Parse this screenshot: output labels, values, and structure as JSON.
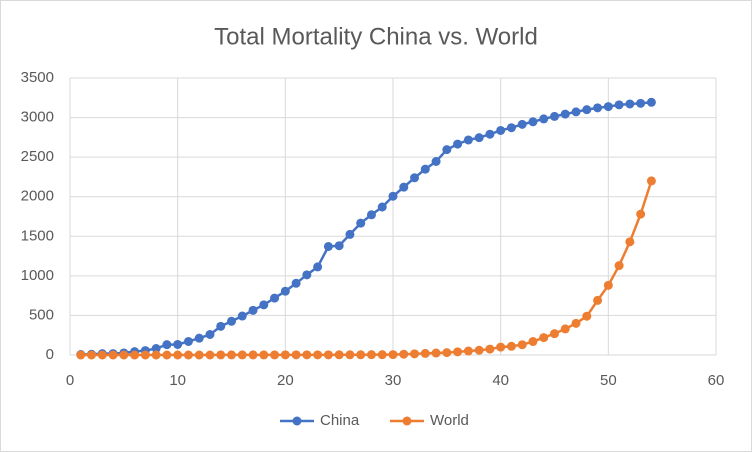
{
  "chart_data": {
    "type": "line",
    "title": "Total Mortality China vs. World",
    "x": [
      1,
      2,
      3,
      4,
      5,
      6,
      7,
      8,
      9,
      10,
      11,
      12,
      13,
      14,
      15,
      16,
      17,
      18,
      19,
      20,
      21,
      22,
      23,
      24,
      25,
      26,
      27,
      28,
      29,
      30,
      31,
      32,
      33,
      34,
      35,
      36,
      37,
      38,
      39,
      40,
      41,
      42,
      43,
      44,
      45,
      46,
      47,
      48,
      49,
      50,
      51,
      52,
      53,
      54
    ],
    "series": [
      {
        "name": "China",
        "color": "#4472c4",
        "values": [
          6,
          9,
          17,
          18,
          26,
          42,
          56,
          82,
          131,
          133,
          171,
          213,
          259,
          362,
          426,
          492,
          564,
          634,
          719,
          806,
          906,
          1013,
          1113,
          1371,
          1381,
          1524,
          1666,
          1772,
          1870,
          2006,
          2121,
          2239,
          2348,
          2445,
          2595,
          2665,
          2717,
          2746,
          2790,
          2837,
          2872,
          2914,
          2947,
          2983,
          3015,
          3044,
          3072,
          3100,
          3123,
          3139,
          3161,
          3172,
          3180,
          3193
        ]
      },
      {
        "name": "World",
        "color": "#ed7d31",
        "values": [
          0,
          0,
          0,
          0,
          0,
          0,
          0,
          0,
          0,
          0,
          0,
          0,
          0,
          1,
          1,
          1,
          1,
          1,
          1,
          2,
          2,
          2,
          2,
          2,
          3,
          3,
          3,
          4,
          4,
          5,
          10,
          15,
          20,
          25,
          30,
          40,
          50,
          60,
          75,
          100,
          110,
          130,
          170,
          220,
          270,
          330,
          400,
          490,
          690,
          880,
          1130,
          1430,
          1780,
          2200
        ]
      }
    ],
    "xlim": [
      0,
      60
    ],
    "xticks": [
      0,
      10,
      20,
      30,
      40,
      50,
      60
    ],
    "ylim": [
      0,
      3500
    ],
    "yticks": [
      0,
      500,
      1000,
      1500,
      2000,
      2500,
      3000,
      3500
    ],
    "grid": true,
    "legend": "bottom"
  }
}
